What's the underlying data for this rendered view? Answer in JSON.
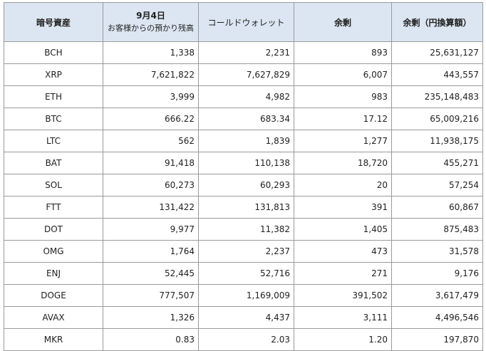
{
  "table": {
    "headers": {
      "asset": "暗号資産",
      "date": "9月4日",
      "deposit": "お客様からの預かり残高",
      "cold_wallet": "コールドウォレット",
      "surplus": "余剰",
      "surplus_jpy": "余剰（円換算額）"
    },
    "rows": [
      {
        "asset": "BCH",
        "deposit": "1,338",
        "cold": "2,231",
        "surplus": "893",
        "jpy": "25,631,127"
      },
      {
        "asset": "XRP",
        "deposit": "7,621,822",
        "cold": "7,627,829",
        "surplus": "6,007",
        "jpy": "443,557"
      },
      {
        "asset": "ETH",
        "deposit": "3,999",
        "cold": "4,982",
        "surplus": "983",
        "jpy": "235,148,483"
      },
      {
        "asset": "BTC",
        "deposit": "666.22",
        "cold": "683.34",
        "surplus": "17.12",
        "jpy": "65,009,216"
      },
      {
        "asset": "LTC",
        "deposit": "562",
        "cold": "1,839",
        "surplus": "1,277",
        "jpy": "11,938,175"
      },
      {
        "asset": "BAT",
        "deposit": "91,418",
        "cold": "110,138",
        "surplus": "18,720",
        "jpy": "455,271"
      },
      {
        "asset": "SOL",
        "deposit": "60,273",
        "cold": "60,293",
        "surplus": "20",
        "jpy": "57,254"
      },
      {
        "asset": "FTT",
        "deposit": "131,422",
        "cold": "131,813",
        "surplus": "391",
        "jpy": "60,867"
      },
      {
        "asset": "DOT",
        "deposit": "9,977",
        "cold": "11,382",
        "surplus": "1,405",
        "jpy": "875,483"
      },
      {
        "asset": "OMG",
        "deposit": "1,764",
        "cold": "2,237",
        "surplus": "473",
        "jpy": "31,578"
      },
      {
        "asset": "ENJ",
        "deposit": "52,445",
        "cold": "52,716",
        "surplus": "271",
        "jpy": "9,176"
      },
      {
        "asset": "DOGE",
        "deposit": "777,507",
        "cold": "1,169,009",
        "surplus": "391,502",
        "jpy": "3,617,479"
      },
      {
        "asset": "AVAX",
        "deposit": "1,326",
        "cold": "4,437",
        "surplus": "3,111",
        "jpy": "4,496,546"
      },
      {
        "asset": "MKR",
        "deposit": "0.83",
        "cold": "2.03",
        "surplus": "1.20",
        "jpy": "197,870"
      }
    ]
  },
  "colors": {
    "header_bg": "#dce6f2",
    "border": "#9a9a9a",
    "text": "#1f1f1f"
  }
}
